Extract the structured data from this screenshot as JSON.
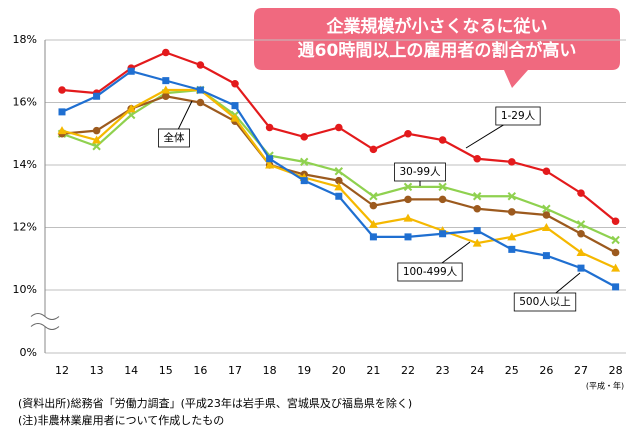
{
  "chart_data": {
    "type": "line",
    "callout": [
      "企業規模が小さくなるに従い",
      "週60時間以上の雇用者の割合が高い"
    ],
    "x_axis_note": "(平成・年)",
    "notes": [
      "(資料出所)総務省「労働力調査」(平成23年は岩手県、宮城県及び福島県を除く)",
      "(注)非農林業雇用者について作成したもの"
    ],
    "categories": [
      "12",
      "13",
      "14",
      "15",
      "16",
      "17",
      "18",
      "19",
      "20",
      "21",
      "22",
      "23",
      "24",
      "25",
      "26",
      "27",
      "28"
    ],
    "ylim": [
      0,
      18
    ],
    "axis_break": [
      0,
      10
    ],
    "yticks": [
      {
        "value": 0,
        "label": "0%"
      },
      {
        "value": 10,
        "label": "10%"
      },
      {
        "value": 12,
        "label": "12%"
      },
      {
        "value": 14,
        "label": "14%"
      },
      {
        "value": 16,
        "label": "16%"
      },
      {
        "value": 18,
        "label": "18%"
      }
    ],
    "grid": true,
    "series": [
      {
        "name": "1-29人",
        "color": "#e31a1c",
        "marker": "circle",
        "values": [
          16.4,
          16.3,
          17.1,
          17.6,
          17.2,
          16.6,
          15.2,
          14.9,
          15.2,
          14.5,
          15.0,
          14.8,
          14.2,
          14.1,
          13.8,
          13.1,
          12.2
        ]
      },
      {
        "name": "30-99人",
        "color": "#8fd14f",
        "marker": "cross",
        "values": [
          15.0,
          14.6,
          15.6,
          16.3,
          16.4,
          15.6,
          14.3,
          14.1,
          13.8,
          13.0,
          13.3,
          13.3,
          13.0,
          13.0,
          12.6,
          12.1,
          11.6
        ]
      },
      {
        "name": "全体",
        "color": "#9c5a1e",
        "marker": "circle",
        "values": [
          15.0,
          15.1,
          15.8,
          16.2,
          16.0,
          15.4,
          14.0,
          13.7,
          13.5,
          12.7,
          12.9,
          12.9,
          12.6,
          12.5,
          12.4,
          11.8,
          11.2
        ]
      },
      {
        "name": "100-499人",
        "color": "#f5b800",
        "marker": "triangle",
        "values": [
          15.1,
          14.8,
          15.8,
          16.4,
          16.4,
          15.5,
          14.0,
          13.6,
          13.3,
          12.1,
          12.3,
          11.9,
          11.5,
          11.7,
          12.0,
          11.2,
          10.7
        ]
      },
      {
        "name": "500人以上",
        "color": "#1f6fd1",
        "marker": "square",
        "values": [
          15.7,
          16.2,
          17.0,
          16.7,
          16.4,
          15.9,
          14.2,
          13.5,
          13.0,
          11.7,
          11.7,
          11.8,
          11.9,
          11.3,
          11.1,
          10.7,
          10.1
        ]
      }
    ]
  }
}
